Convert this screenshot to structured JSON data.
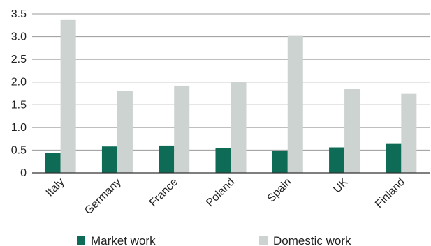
{
  "chart_data": {
    "type": "bar",
    "categories": [
      "Italy",
      "Germany",
      "France",
      "Poland",
      "Spain",
      "UK",
      "Finland"
    ],
    "series": [
      {
        "name": "Market work",
        "values": [
          0.43,
          0.58,
          0.6,
          0.55,
          0.49,
          0.56,
          0.65
        ],
        "color": "#0e6b56"
      },
      {
        "name": "Domestic work",
        "values": [
          3.38,
          1.8,
          1.92,
          2.0,
          3.03,
          1.85,
          1.74
        ],
        "color": "#cdd3d0"
      }
    ],
    "ylim": [
      0,
      3.5
    ],
    "yticks": [
      "0",
      "0.5",
      "1.0",
      "1.5",
      "2.0",
      "2.5",
      "3.0",
      "3.5"
    ],
    "grid": true,
    "legend": "bottom"
  }
}
